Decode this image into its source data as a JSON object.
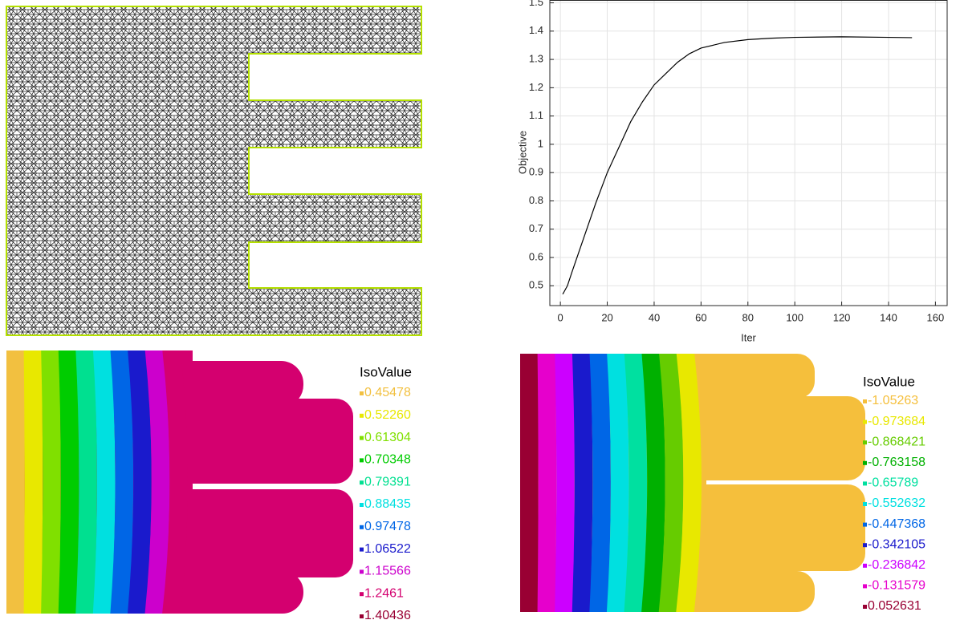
{
  "chart_data": {
    "type": "line",
    "xlabel": "Iter",
    "ylabel": "Objective",
    "x": [
      1,
      3,
      5,
      10,
      15,
      20,
      25,
      30,
      35,
      40,
      45,
      50,
      55,
      60,
      70,
      80,
      90,
      100,
      120,
      140,
      150
    ],
    "values": [
      0.47,
      0.5,
      0.55,
      0.67,
      0.79,
      0.9,
      0.99,
      1.08,
      1.15,
      1.21,
      1.25,
      1.29,
      1.32,
      1.34,
      1.36,
      1.37,
      1.375,
      1.378,
      1.38,
      1.378,
      1.377
    ],
    "color": "#000000",
    "xlim": [
      -4.5,
      165
    ],
    "ylim": [
      0.43,
      1.51
    ],
    "xticks": [
      0,
      20,
      40,
      60,
      80,
      100,
      120,
      140,
      160
    ],
    "yticks": [
      0.5,
      0.6,
      0.7,
      0.8,
      0.9,
      1,
      1.1,
      1.2,
      1.3,
      1.4,
      1.5
    ],
    "grid": true
  },
  "panels": [
    {
      "legend_title": "IsoValue",
      "levels": [
        "0.45478",
        "0.52260",
        "0.61304",
        "0.70348",
        "0.79391",
        "0.88435",
        "0.97478",
        "1.06522",
        "1.15566",
        "1.2461",
        "1.40436"
      ],
      "colors": [
        "#f2c040",
        "#e8e800",
        "#80e000",
        "#00cc00",
        "#00e090",
        "#00e0e0",
        "#0066e6",
        "#1a1acc",
        "#cc00cc",
        "#d4006f",
        "#990033"
      ]
    },
    {
      "legend_title": "IsoValue",
      "levels": [
        "-1.05263",
        "-0.973684",
        "-0.868421",
        "-0.763158",
        "-0.65789",
        "-0.552632",
        "-0.447368",
        "-0.342105",
        "-0.236842",
        "-0.131579",
        "0.052631"
      ],
      "colors": [
        "#f5bf3c",
        "#e8e800",
        "#66cc00",
        "#00b000",
        "#00e0a0",
        "#00e0e0",
        "#0066e6",
        "#1a1acc",
        "#cc00ff",
        "#e600cc",
        "#990033"
      ]
    }
  ]
}
